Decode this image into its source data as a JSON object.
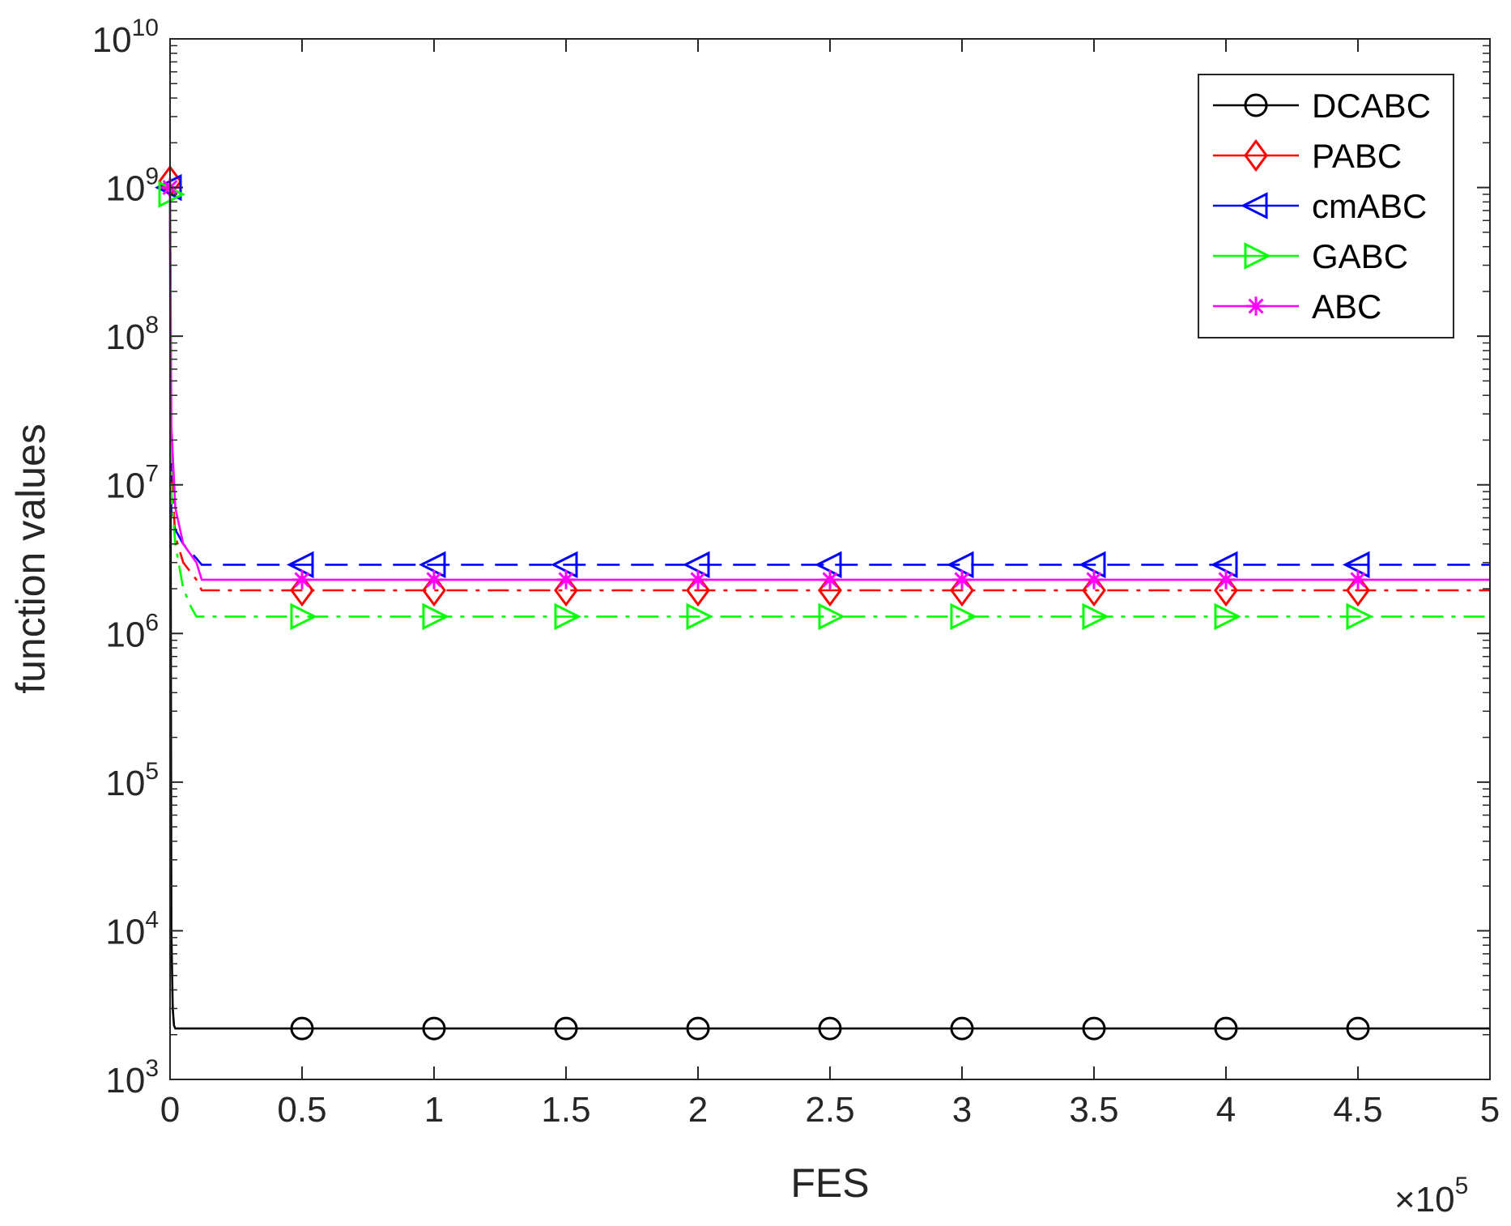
{
  "chart_data": {
    "type": "line",
    "xlabel": "FES",
    "ylabel": "function values",
    "x_multiplier": {
      "times": "×",
      "base": "10",
      "exponent": "5"
    },
    "x_scale": 100000,
    "xlim": [
      0,
      5
    ],
    "ylim": [
      1000,
      10000000000
    ],
    "yscale": "log",
    "x_ticks": [
      0,
      0.5,
      1,
      1.5,
      2,
      2.5,
      3,
      3.5,
      4,
      4.5,
      5
    ],
    "x_tick_labels": [
      "0",
      "0.5",
      "1",
      "1.5",
      "2",
      "2.5",
      "3",
      "3.5",
      "4",
      "4.5",
      "5"
    ],
    "y_ticks": [
      {
        "value": 1000,
        "base": "10",
        "exp": "3"
      },
      {
        "value": 10000,
        "base": "10",
        "exp": "4"
      },
      {
        "value": 100000,
        "base": "10",
        "exp": "5"
      },
      {
        "value": 1000000,
        "base": "10",
        "exp": "6"
      },
      {
        "value": 10000000,
        "base": "10",
        "exp": "7"
      },
      {
        "value": 100000000,
        "base": "10",
        "exp": "8"
      },
      {
        "value": 1000000000,
        "base": "10",
        "exp": "9"
      },
      {
        "value": 10000000000,
        "base": "10",
        "exp": "10"
      }
    ],
    "grid": false,
    "legend_position": "top-right",
    "series": [
      {
        "name": "DCABC",
        "color": "#000000",
        "dash": "solid",
        "marker": "circle",
        "x": [
          0,
          0.005,
          0.01,
          0.015,
          0.02,
          5
        ],
        "y": [
          1000000000,
          10000,
          3000,
          2300,
          2200,
          2200
        ],
        "marker_x": [
          0.5,
          1,
          1.5,
          2,
          2.5,
          3,
          3.5,
          4,
          4.5
        ],
        "marker_y": 2200
      },
      {
        "name": "PABC",
        "color": "#ff0000",
        "dash": "dashdot",
        "marker": "diamond",
        "x": [
          0,
          0.005,
          0.02,
          0.05,
          0.1,
          0.12,
          5
        ],
        "y": [
          1100000000,
          12000000,
          4500000,
          3000000,
          2300000,
          1950000,
          1950000
        ],
        "marker_x": [
          0,
          0.5,
          1,
          1.5,
          2,
          2.5,
          3,
          3.5,
          4,
          4.5
        ],
        "marker_y": [
          1100000000,
          1950000,
          1950000,
          1950000,
          1950000,
          1950000,
          1950000,
          1950000,
          1950000,
          1950000
        ]
      },
      {
        "name": "cmABC",
        "color": "#0000ff",
        "dash": "dashed",
        "marker": "triangle-left",
        "x": [
          0,
          0.005,
          0.02,
          0.05,
          0.1,
          0.12,
          5
        ],
        "y": [
          1000000000,
          6000000,
          5000000,
          4000000,
          3200000,
          2900000,
          2900000
        ],
        "marker_x": [
          0,
          0.5,
          1,
          1.5,
          2,
          2.5,
          3,
          3.5,
          4,
          4.5
        ],
        "marker_y": [
          1000000000,
          2900000,
          2900000,
          2900000,
          2900000,
          2900000,
          2900000,
          2900000,
          2900000,
          2900000
        ]
      },
      {
        "name": "GABC",
        "color": "#00ff00",
        "dash": "dashdot",
        "marker": "triangle-right",
        "x": [
          0,
          0.005,
          0.02,
          0.05,
          0.08,
          0.1,
          5
        ],
        "y": [
          900000000,
          9000000,
          4000000,
          2000000,
          1500000,
          1300000,
          1300000
        ],
        "marker_x": [
          0,
          0.5,
          1,
          1.5,
          2,
          2.5,
          3,
          3.5,
          4,
          4.5
        ],
        "marker_y": [
          900000000,
          1300000,
          1300000,
          1300000,
          1300000,
          1300000,
          1300000,
          1300000,
          1300000,
          1300000
        ]
      },
      {
        "name": "ABC",
        "color": "#ff00ff",
        "dash": "solid",
        "marker": "asterisk",
        "x": [
          0,
          0.005,
          0.02,
          0.05,
          0.1,
          0.12,
          5
        ],
        "y": [
          1000000000,
          25000000,
          7000000,
          4000000,
          3000000,
          2300000,
          2300000
        ],
        "marker_x": [
          0,
          0.5,
          1,
          1.5,
          2,
          2.5,
          3,
          3.5,
          4,
          4.5
        ],
        "marker_y": [
          1000000000,
          2300000,
          2300000,
          2300000,
          2300000,
          2300000,
          2300000,
          2300000,
          2300000,
          2300000
        ]
      }
    ]
  }
}
